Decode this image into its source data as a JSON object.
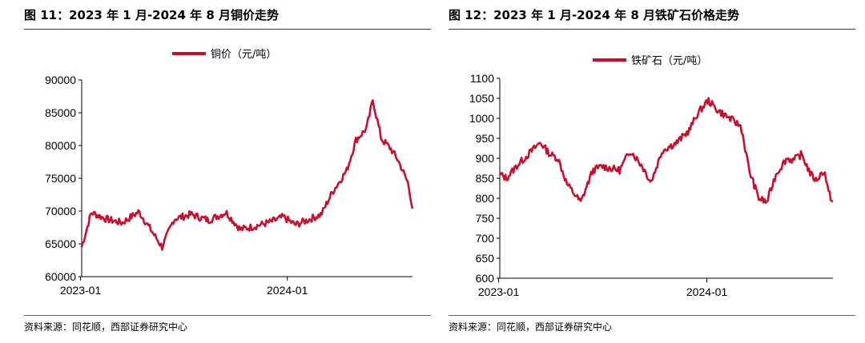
{
  "chart_data": [
    {
      "type": "line",
      "title": "图 11：2023 年 1 月-2024 年 8 月铜价走势",
      "source": "资料来源：同花顺，西部证券研究中心",
      "series": [
        {
          "name": "铜价（元/吨）",
          "color": "#c8102e",
          "x": [
            "2023-01-03",
            "2023-01-20",
            "2023-02-15",
            "2023-03-15",
            "2023-04-14",
            "2023-05-10",
            "2023-05-25",
            "2023-06-15",
            "2023-07-15",
            "2023-08-15",
            "2023-09-15",
            "2023-10-10",
            "2023-11-01",
            "2023-12-01",
            "2023-12-25",
            "2024-01-15",
            "2024-02-05",
            "2024-03-01",
            "2024-03-20",
            "2024-04-15",
            "2024-05-01",
            "2024-05-20",
            "2024-05-31",
            "2024-06-15",
            "2024-07-01",
            "2024-07-15",
            "2024-08-01",
            "2024-08-05",
            "2024-08-09"
          ],
          "y": [
            64500,
            69800,
            68800,
            68200,
            69900,
            66500,
            64500,
            68800,
            69500,
            68600,
            69800,
            67200,
            67600,
            68300,
            69100,
            67900,
            68600,
            69500,
            72800,
            76200,
            80800,
            82600,
            87000,
            81000,
            79600,
            77700,
            74300,
            72500,
            70500
          ]
        }
      ],
      "x_ticks": [
        "2023-01",
        "2024-01"
      ],
      "y_ticks": [
        60000,
        65000,
        70000,
        75000,
        80000,
        85000,
        90000
      ],
      "ylim": [
        60000,
        90000
      ],
      "x_range": [
        "2023-01-03",
        "2024-08-09"
      ],
      "grid": false,
      "legend": "top-center"
    },
    {
      "type": "line",
      "title": "图 12：2023 年 1 月-2024 年 8 月铁矿石价格走势",
      "source": "资料来源：同花顺，西部证券研究中心",
      "series": [
        {
          "name": "铁矿石（元/吨）",
          "color": "#c8102e",
          "x": [
            "2023-01-03",
            "2023-01-15",
            "2023-02-01",
            "2023-03-01",
            "2023-03-15",
            "2023-04-01",
            "2023-04-15",
            "2023-05-01",
            "2023-05-25",
            "2023-06-15",
            "2023-07-01",
            "2023-08-01",
            "2023-08-20",
            "2023-09-10",
            "2023-09-25",
            "2023-10-15",
            "2023-11-10",
            "2023-12-01",
            "2023-12-15",
            "2024-01-03",
            "2024-01-20",
            "2024-02-15",
            "2024-03-01",
            "2024-03-15",
            "2024-04-01",
            "2024-04-15",
            "2024-05-01",
            "2024-05-20",
            "2024-06-01",
            "2024-06-15",
            "2024-07-01",
            "2024-07-10",
            "2024-07-25",
            "2024-08-01",
            "2024-08-09"
          ],
          "y": [
            860,
            850,
            880,
            920,
            940,
            910,
            900,
            835,
            790,
            870,
            880,
            870,
            920,
            880,
            840,
            920,
            940,
            970,
            1010,
            1045,
            1020,
            995,
            980,
            870,
            800,
            790,
            860,
            900,
            895,
            910,
            860,
            845,
            870,
            815,
            790
          ]
        }
      ],
      "x_ticks": [
        "2023-01",
        "2024-01"
      ],
      "y_ticks": [
        600,
        650,
        700,
        750,
        800,
        850,
        900,
        950,
        1000,
        1050,
        1100
      ],
      "ylim": [
        600,
        1100
      ],
      "x_range": [
        "2023-01-03",
        "2024-08-09"
      ],
      "grid": false,
      "legend": "top-center"
    }
  ]
}
